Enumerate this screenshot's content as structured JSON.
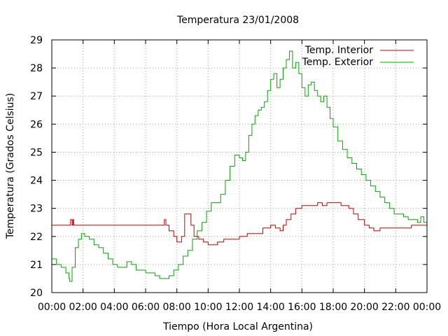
{
  "chart_data": {
    "type": "line",
    "title": "Temperatura 23/01/2008",
    "xlabel": "Tiempo (Hora Local Argentina)",
    "ylabel": "Temperatura (Grados Celsius)",
    "xlim": [
      0,
      24
    ],
    "ylim": [
      20,
      29
    ],
    "x_ticks": [
      0,
      2,
      4,
      6,
      8,
      10,
      12,
      14,
      16,
      18,
      20,
      22,
      24
    ],
    "x_tick_labels": [
      "00:00",
      "02:00",
      "04:00",
      "06:00",
      "08:00",
      "10:00",
      "12:00",
      "14:00",
      "16:00",
      "18:00",
      "20:00",
      "22:00",
      "00:00"
    ],
    "y_ticks": [
      20,
      21,
      22,
      23,
      24,
      25,
      26,
      27,
      28,
      29
    ],
    "y_tick_labels": [
      "20",
      "21",
      "22",
      "23",
      "24",
      "25",
      "26",
      "27",
      "28",
      "29"
    ],
    "grid": true,
    "legend_position": "top-right",
    "series": [
      {
        "name": "Temp. Interior",
        "color": "#cc0000",
        "x": [
          0,
          1.1,
          1.2,
          1.3,
          1.35,
          1.4,
          7.1,
          7.2,
          7.3,
          7.5,
          7.8,
          8.0,
          8.1,
          8.3,
          8.5,
          8.7,
          8.9,
          9.1,
          9.4,
          9.7,
          10.0,
          10.3,
          10.6,
          11.0,
          11.5,
          12.0,
          12.5,
          13.0,
          13.5,
          14.0,
          14.3,
          14.6,
          14.8,
          15.0,
          15.3,
          15.6,
          16.0,
          16.5,
          17.0,
          17.3,
          17.6,
          18.0,
          18.5,
          19.0,
          19.3,
          19.6,
          20.0,
          20.3,
          20.6,
          21.0,
          21.5,
          22.0,
          22.5,
          23.0,
          23.5,
          24.0
        ],
        "y": [
          22.4,
          22.4,
          22.6,
          22.4,
          22.6,
          22.4,
          22.4,
          22.6,
          22.4,
          22.2,
          22.0,
          21.8,
          21.8,
          22.0,
          22.8,
          22.8,
          22.4,
          22.0,
          21.9,
          21.8,
          21.7,
          21.7,
          21.8,
          21.9,
          21.9,
          22.0,
          22.1,
          22.1,
          22.3,
          22.4,
          22.3,
          22.2,
          22.4,
          22.6,
          22.8,
          23.0,
          23.1,
          23.1,
          23.2,
          23.1,
          23.2,
          23.2,
          23.1,
          23.0,
          22.8,
          22.6,
          22.4,
          22.3,
          22.2,
          22.3,
          22.3,
          22.3,
          22.3,
          22.4,
          22.4,
          22.4
        ]
      },
      {
        "name": "Temp. Exterior",
        "color": "#00aa00",
        "x": [
          0,
          0.3,
          0.6,
          0.9,
          1.1,
          1.15,
          1.3,
          1.5,
          1.7,
          1.9,
          2.1,
          2.4,
          2.7,
          3.0,
          3.3,
          3.6,
          3.9,
          4.2,
          4.5,
          4.8,
          5.1,
          5.4,
          5.7,
          6.0,
          6.3,
          6.6,
          6.9,
          7.2,
          7.5,
          7.8,
          8.1,
          8.4,
          8.7,
          9.0,
          9.3,
          9.6,
          9.9,
          10.2,
          10.5,
          10.8,
          11.1,
          11.4,
          11.7,
          12.0,
          12.2,
          12.4,
          12.6,
          12.8,
          13.0,
          13.2,
          13.4,
          13.6,
          13.8,
          14.0,
          14.2,
          14.4,
          14.6,
          14.8,
          15.0,
          15.2,
          15.4,
          15.6,
          15.8,
          16.0,
          16.2,
          16.4,
          16.6,
          16.8,
          17.0,
          17.2,
          17.4,
          17.6,
          17.8,
          18.0,
          18.3,
          18.6,
          18.9,
          19.2,
          19.5,
          19.8,
          20.1,
          20.4,
          20.7,
          21.0,
          21.3,
          21.6,
          21.9,
          22.2,
          22.5,
          22.8,
          23.1,
          23.4,
          23.6,
          23.8,
          24.0
        ],
        "y": [
          21.2,
          21.0,
          20.9,
          20.7,
          20.5,
          20.4,
          20.9,
          21.6,
          21.9,
          22.1,
          22.0,
          21.9,
          21.7,
          21.6,
          21.4,
          21.2,
          21.0,
          20.9,
          20.9,
          21.1,
          21.0,
          20.8,
          20.8,
          20.7,
          20.7,
          20.6,
          20.5,
          20.5,
          20.6,
          20.8,
          21.0,
          21.3,
          21.5,
          21.9,
          22.2,
          22.5,
          22.9,
          23.2,
          23.2,
          23.5,
          24.0,
          24.5,
          24.9,
          24.8,
          24.7,
          25.0,
          25.6,
          26.0,
          26.3,
          26.5,
          26.6,
          26.8,
          27.2,
          27.6,
          27.8,
          27.3,
          27.6,
          28.0,
          28.3,
          28.6,
          28.0,
          28.2,
          27.8,
          27.3,
          27.0,
          27.4,
          27.5,
          27.2,
          27.0,
          26.8,
          27.0,
          26.6,
          26.2,
          25.9,
          25.4,
          25.1,
          24.8,
          24.6,
          24.4,
          24.2,
          24.0,
          23.8,
          23.6,
          23.4,
          23.2,
          23.0,
          22.8,
          22.8,
          22.7,
          22.6,
          22.6,
          22.5,
          22.7,
          22.5,
          22.4
        ]
      }
    ]
  }
}
